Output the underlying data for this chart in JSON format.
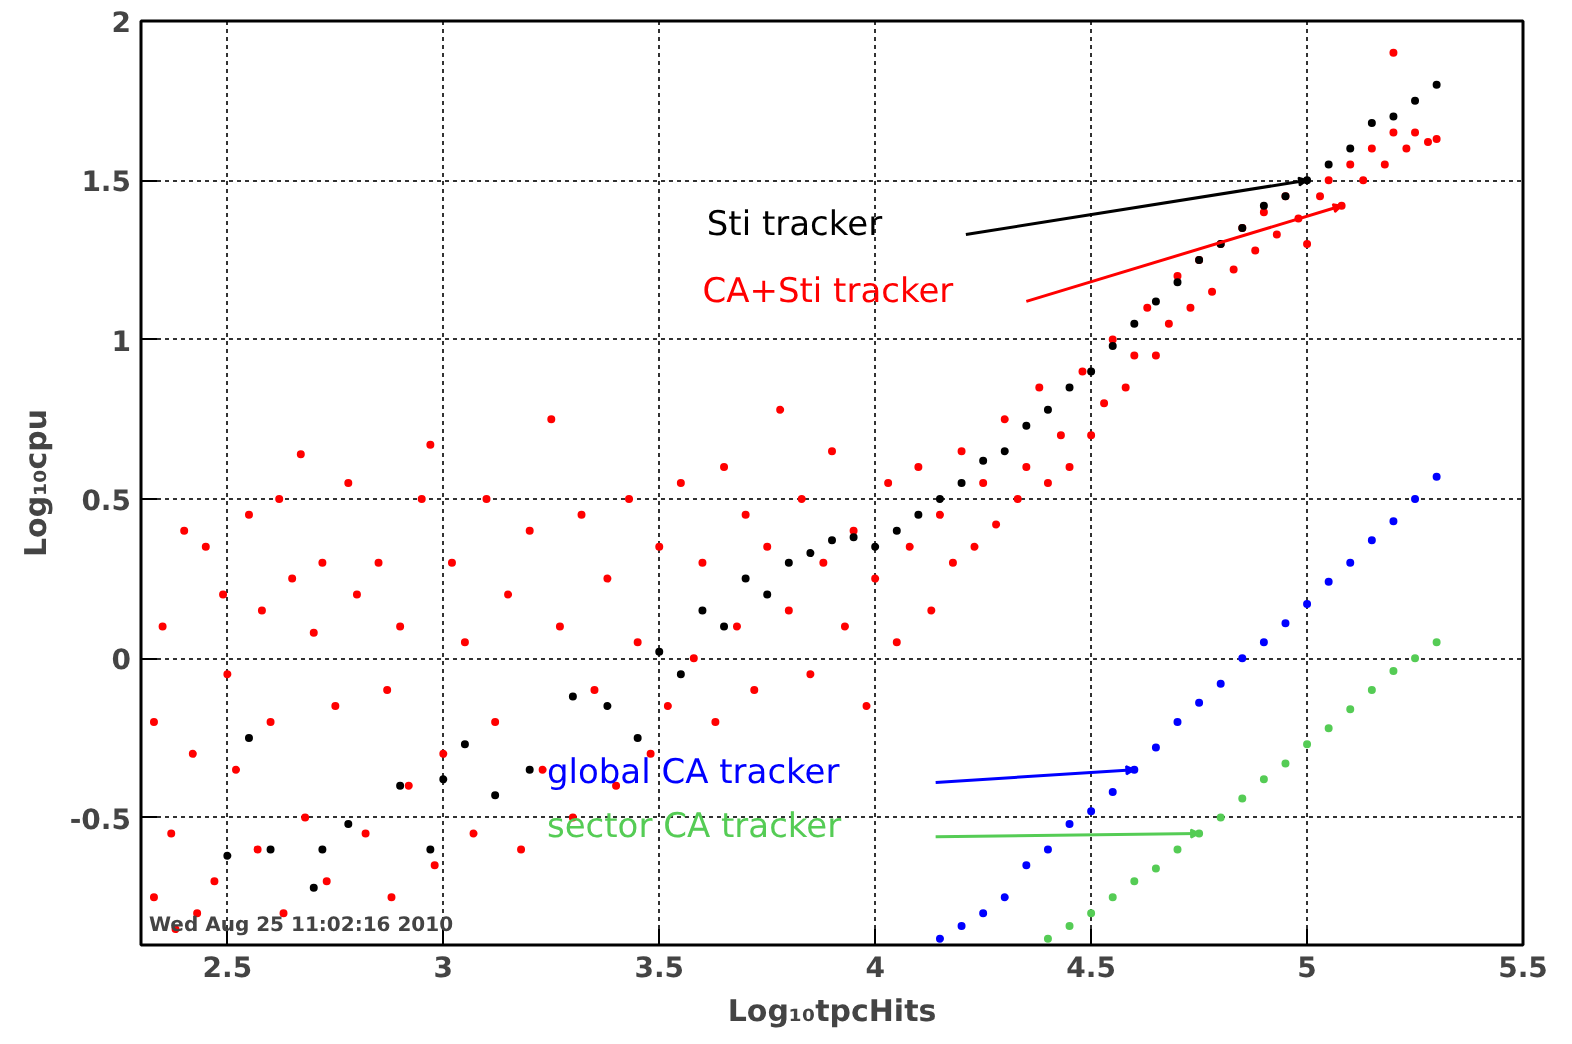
{
  "chart_data": {
    "type": "scatter",
    "xlabel": "Log₁₀tpcHits",
    "ylabel": "Log₁₀cpu",
    "xlim": [
      2.3,
      5.5
    ],
    "ylim": [
      -0.9,
      2
    ],
    "xticks": [
      2.5,
      3,
      3.5,
      4,
      4.5,
      5,
      5.5
    ],
    "yticks": [
      -0.5,
      0,
      0.5,
      1,
      1.5,
      2
    ],
    "grid": true,
    "marker": "circle",
    "annotations": [
      "Wed Aug 25 11:02:16 2010"
    ],
    "series": [
      {
        "name": "CA+Sti tracker",
        "color": "#ff0000",
        "x": [
          2.33,
          2.33,
          2.35,
          2.37,
          2.38,
          2.4,
          2.42,
          2.43,
          2.45,
          2.47,
          2.49,
          2.5,
          2.52,
          2.55,
          2.57,
          2.58,
          2.6,
          2.62,
          2.63,
          2.65,
          2.67,
          2.68,
          2.7,
          2.72,
          2.73,
          2.75,
          2.78,
          2.8,
          2.82,
          2.85,
          2.87,
          2.88,
          2.9,
          2.92,
          2.95,
          2.97,
          2.98,
          3.0,
          3.02,
          3.05,
          3.07,
          3.1,
          3.12,
          3.15,
          3.18,
          3.2,
          3.23,
          3.25,
          3.27,
          3.3,
          3.32,
          3.35,
          3.38,
          3.4,
          3.43,
          3.45,
          3.48,
          3.5,
          3.52,
          3.55,
          3.58,
          3.6,
          3.63,
          3.65,
          3.68,
          3.7,
          3.72,
          3.75,
          3.78,
          3.8,
          3.83,
          3.85,
          3.88,
          3.9,
          3.93,
          3.95,
          3.98,
          4.0,
          4.03,
          4.05,
          4.08,
          4.1,
          4.13,
          4.15,
          4.18,
          4.2,
          4.23,
          4.25,
          4.28,
          4.3,
          4.33,
          4.35,
          4.38,
          4.4,
          4.43,
          4.45,
          4.48,
          4.5,
          4.53,
          4.55,
          4.58,
          4.6,
          4.63,
          4.65,
          4.68,
          4.7,
          4.73,
          4.75,
          4.78,
          4.8,
          4.83,
          4.85,
          4.88,
          4.9,
          4.93,
          4.95,
          4.98,
          5.0,
          5.03,
          5.05,
          5.08,
          5.1,
          5.13,
          5.15,
          5.18,
          5.2,
          5.2,
          5.23,
          5.25,
          5.28,
          5.3
        ],
        "values": [
          -0.2,
          -0.75,
          0.1,
          -0.55,
          -0.85,
          0.4,
          -0.3,
          -0.8,
          0.35,
          -0.7,
          0.2,
          -0.05,
          -0.35,
          0.45,
          -0.6,
          0.15,
          -0.2,
          0.5,
          -0.8,
          0.25,
          0.64,
          -0.5,
          0.08,
          0.3,
          -0.7,
          -0.15,
          0.55,
          0.2,
          -0.55,
          0.3,
          -0.1,
          -0.75,
          0.1,
          -0.4,
          0.5,
          0.67,
          -0.65,
          -0.3,
          0.3,
          0.05,
          -0.55,
          0.5,
          -0.2,
          0.2,
          -0.6,
          0.4,
          -0.35,
          0.75,
          0.1,
          -0.5,
          0.45,
          -0.1,
          0.25,
          -0.4,
          0.5,
          0.05,
          -0.3,
          0.35,
          -0.15,
          0.55,
          0.0,
          0.3,
          -0.2,
          0.6,
          0.1,
          0.45,
          -0.1,
          0.35,
          0.78,
          0.15,
          0.5,
          -0.05,
          0.3,
          0.65,
          0.1,
          0.4,
          -0.15,
          0.25,
          0.55,
          0.05,
          0.35,
          0.6,
          0.15,
          0.45,
          0.3,
          0.65,
          0.35,
          0.55,
          0.42,
          0.75,
          0.5,
          0.6,
          0.85,
          0.55,
          0.7,
          0.6,
          0.9,
          0.7,
          0.8,
          1.0,
          0.85,
          0.95,
          1.1,
          0.95,
          1.05,
          1.2,
          1.1,
          1.25,
          1.15,
          1.3,
          1.22,
          1.35,
          1.28,
          1.4,
          1.33,
          1.45,
          1.38,
          1.3,
          1.45,
          1.5,
          1.42,
          1.55,
          1.5,
          1.6,
          1.55,
          1.65,
          1.9,
          1.6,
          1.65,
          1.62,
          1.63
        ]
      },
      {
        "name": "Sti tracker",
        "color": "#000000",
        "x": [
          2.5,
          2.55,
          2.6,
          2.7,
          2.72,
          2.78,
          2.9,
          2.97,
          3.0,
          3.05,
          3.12,
          3.2,
          3.3,
          3.38,
          3.45,
          3.5,
          3.55,
          3.6,
          3.65,
          3.7,
          3.75,
          3.8,
          3.85,
          3.9,
          3.95,
          4.0,
          4.05,
          4.1,
          4.15,
          4.2,
          4.25,
          4.3,
          4.35,
          4.4,
          4.45,
          4.5,
          4.55,
          4.6,
          4.65,
          4.7,
          4.75,
          4.8,
          4.85,
          4.9,
          4.95,
          5.0,
          5.05,
          5.1,
          5.15,
          5.2,
          5.25,
          5.3
        ],
        "values": [
          -0.62,
          -0.25,
          -0.6,
          -0.72,
          -0.6,
          -0.52,
          -0.4,
          -0.6,
          -0.38,
          -0.27,
          -0.43,
          -0.35,
          -0.12,
          -0.15,
          -0.25,
          0.02,
          -0.05,
          0.15,
          0.1,
          0.25,
          0.2,
          0.3,
          0.33,
          0.37,
          0.38,
          0.35,
          0.4,
          0.45,
          0.5,
          0.55,
          0.62,
          0.65,
          0.73,
          0.78,
          0.85,
          0.9,
          0.98,
          1.05,
          1.12,
          1.18,
          1.25,
          1.3,
          1.35,
          1.42,
          1.45,
          1.5,
          1.55,
          1.6,
          1.68,
          1.7,
          1.75,
          1.8
        ]
      },
      {
        "name": "global CA tracker",
        "color": "#0000ff",
        "x": [
          4.15,
          4.2,
          4.25,
          4.3,
          4.35,
          4.4,
          4.45,
          4.5,
          4.55,
          4.6,
          4.65,
          4.7,
          4.75,
          4.8,
          4.85,
          4.9,
          4.95,
          5.0,
          5.05,
          5.1,
          5.15,
          5.2,
          5.25,
          5.3
        ],
        "values": [
          -0.88,
          -0.84,
          -0.8,
          -0.75,
          -0.65,
          -0.6,
          -0.52,
          -0.48,
          -0.42,
          -0.35,
          -0.28,
          -0.2,
          -0.14,
          -0.08,
          0.0,
          0.05,
          0.11,
          0.17,
          0.24,
          0.3,
          0.37,
          0.43,
          0.5,
          0.57
        ]
      },
      {
        "name": "sector CA tracker",
        "color": "#55cc55",
        "x": [
          4.4,
          4.45,
          4.5,
          4.55,
          4.6,
          4.65,
          4.7,
          4.75,
          4.8,
          4.85,
          4.9,
          4.95,
          5.0,
          5.05,
          5.1,
          5.15,
          5.2,
          5.25,
          5.3
        ],
        "values": [
          -0.88,
          -0.84,
          -0.8,
          -0.75,
          -0.7,
          -0.66,
          -0.6,
          -0.55,
          -0.5,
          -0.44,
          -0.38,
          -0.33,
          -0.27,
          -0.22,
          -0.16,
          -0.1,
          -0.04,
          0.0,
          0.05
        ]
      }
    ]
  }
}
